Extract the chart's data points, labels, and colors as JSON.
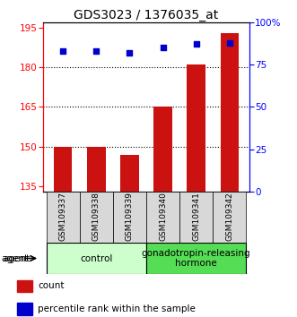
{
  "title": "GDS3023 / 1376035_at",
  "samples": [
    "GSM109337",
    "GSM109338",
    "GSM109339",
    "GSM109340",
    "GSM109341",
    "GSM109342"
  ],
  "bar_values": [
    150,
    150,
    147,
    165,
    181,
    193
  ],
  "percentile_values": [
    83,
    83,
    82,
    85,
    87,
    88
  ],
  "bar_color": "#cc1111",
  "dot_color": "#0000cc",
  "ylim_left": [
    133,
    197
  ],
  "ylim_right": [
    0,
    100
  ],
  "yticks_left": [
    135,
    150,
    165,
    180,
    195
  ],
  "yticks_right": [
    0,
    25,
    50,
    75,
    100
  ],
  "yticklabels_right": [
    "0",
    "25",
    "50",
    "75",
    "100%"
  ],
  "grid_values": [
    150,
    165,
    180
  ],
  "bar_bottom": 133,
  "groups": [
    {
      "label": "control",
      "indices": [
        0,
        1,
        2
      ]
    },
    {
      "label": "gonadotropin-releasing\nhormone",
      "indices": [
        3,
        4,
        5
      ]
    }
  ],
  "group_colors": [
    "#ccffcc",
    "#55dd55"
  ],
  "agent_label": "agent",
  "legend_items": [
    {
      "color": "#cc1111",
      "label": "count"
    },
    {
      "color": "#0000cc",
      "label": "percentile rank within the sample"
    }
  ],
  "bar_width": 0.55,
  "title_fontsize": 10,
  "tick_fontsize": 7.5,
  "label_fontsize": 7.5,
  "sample_label_fontsize": 6.5,
  "group_label_fontsize": 7.5
}
